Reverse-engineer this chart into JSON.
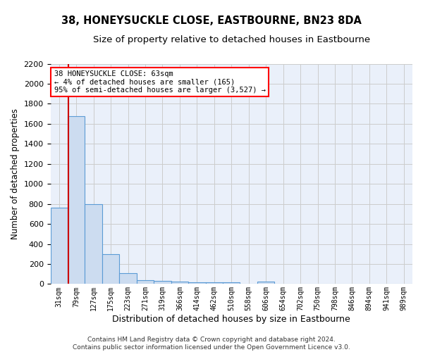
{
  "title": "38, HONEYSUCKLE CLOSE, EASTBOURNE, BN23 8DA",
  "subtitle": "Size of property relative to detached houses in Eastbourne",
  "xlabel": "Distribution of detached houses by size in Eastbourne",
  "ylabel": "Number of detached properties",
  "footnote": "Contains HM Land Registry data © Crown copyright and database right 2024.\nContains public sector information licensed under the Open Government Licence v3.0.",
  "categories": [
    "31sqm",
    "79sqm",
    "127sqm",
    "175sqm",
    "223sqm",
    "271sqm",
    "319sqm",
    "366sqm",
    "414sqm",
    "462sqm",
    "510sqm",
    "558sqm",
    "606sqm",
    "654sqm",
    "702sqm",
    "750sqm",
    "798sqm",
    "846sqm",
    "894sqm",
    "941sqm",
    "989sqm"
  ],
  "values": [
    760,
    1680,
    800,
    295,
    110,
    40,
    28,
    25,
    20,
    15,
    20,
    0,
    25,
    0,
    0,
    0,
    0,
    0,
    0,
    0,
    0
  ],
  "bar_color": "#ccdcf0",
  "bar_edge_color": "#5b9bd5",
  "vline_color": "#cc0000",
  "vline_x": 0.56,
  "ann_text_line1": "38 HONEYSUCKLE CLOSE: 63sqm",
  "ann_text_line2": "← 4% of detached houses are smaller (165)",
  "ann_text_line3": "95% of semi-detached houses are larger (3,527) →",
  "ylim": [
    0,
    2200
  ],
  "yticks": [
    0,
    200,
    400,
    600,
    800,
    1000,
    1200,
    1400,
    1600,
    1800,
    2000,
    2200
  ],
  "grid_color": "#cccccc",
  "bg_color": "#eaf0fa",
  "title_fontsize": 10.5,
  "subtitle_fontsize": 9.5,
  "ylabel_fontsize": 8.5,
  "xlabel_fontsize": 9,
  "footnote_fontsize": 6.5
}
